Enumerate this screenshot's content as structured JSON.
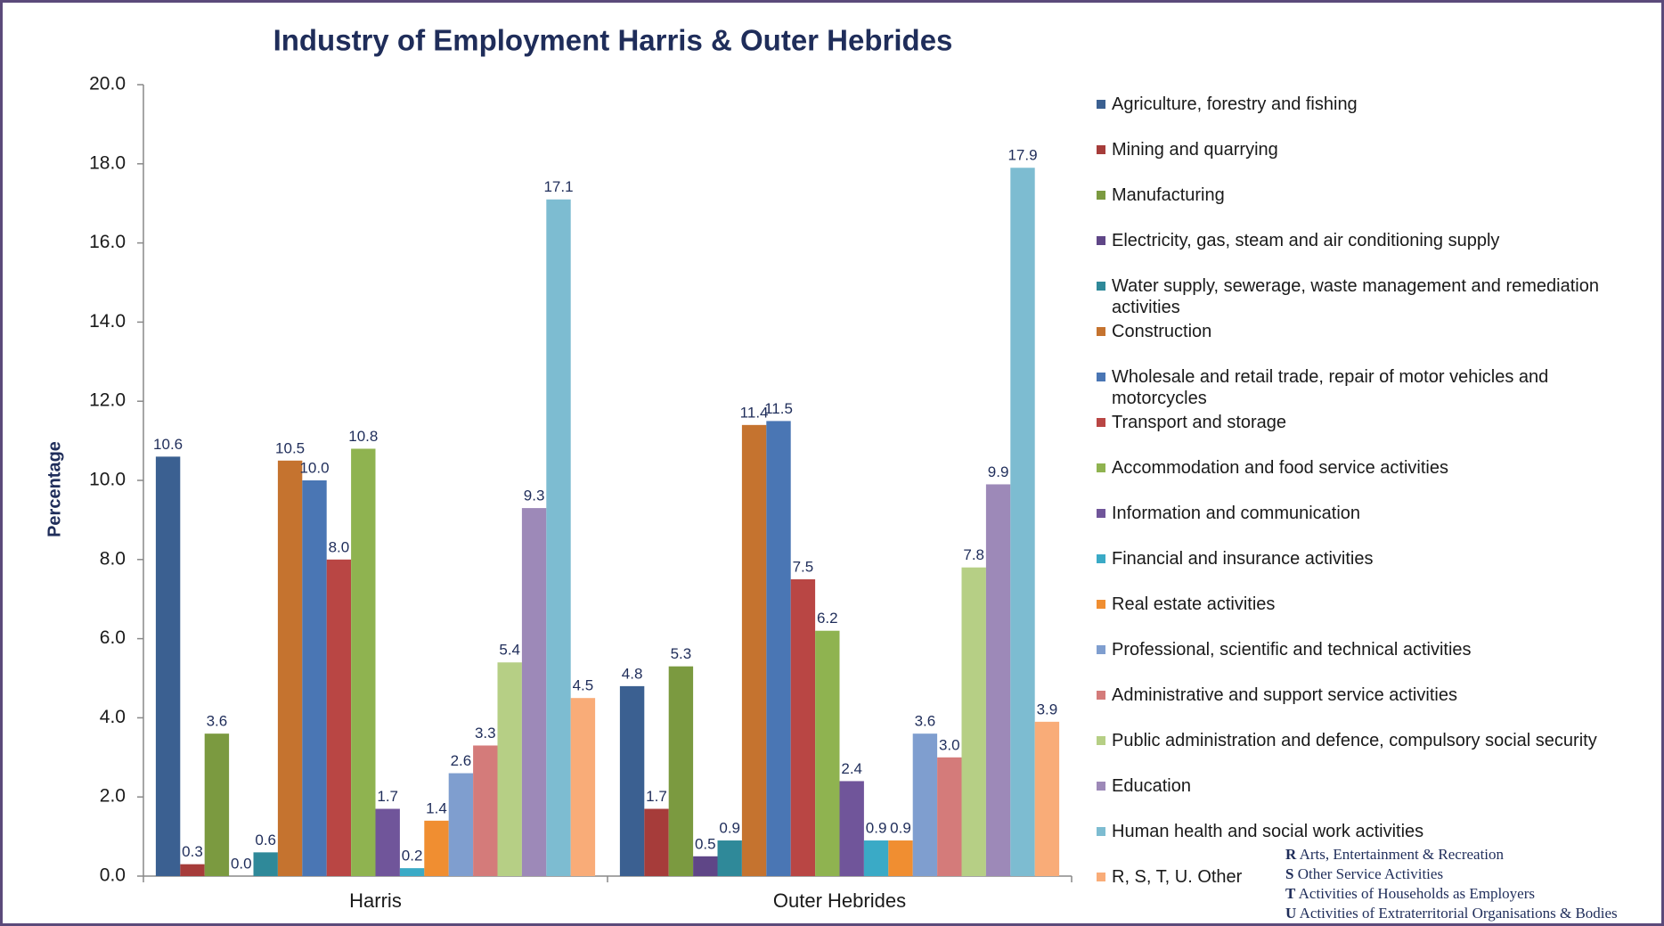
{
  "chart_data": {
    "type": "bar",
    "title": "Industry of Employment Harris & Outer Hebrides",
    "y_label": "Percentage",
    "categories": [
      "Harris",
      "Outer Hebrides"
    ],
    "ylim": [
      0,
      20
    ],
    "yticks": [
      {
        "value": 0,
        "label": "0.0"
      },
      {
        "value": 2,
        "label": "2.0"
      },
      {
        "value": 4,
        "label": "4.0"
      },
      {
        "value": 6,
        "label": "6.0"
      },
      {
        "value": 8,
        "label": "8.0"
      },
      {
        "value": 10,
        "label": "10.0"
      },
      {
        "value": 12,
        "label": "12.0"
      },
      {
        "value": 14,
        "label": "14.0"
      },
      {
        "value": 16,
        "label": "16.0"
      },
      {
        "value": 18,
        "label": "18.0"
      },
      {
        "value": 20,
        "label": "20.0"
      }
    ],
    "legend_position": "right",
    "series": [
      {
        "name": "Agriculture, forestry and fishing",
        "color": "#3b6091",
        "values": [
          10.6,
          4.8
        ],
        "value_labels": [
          "10.6",
          "4.8"
        ]
      },
      {
        "name": "Mining and quarrying",
        "color": "#a63c3a",
        "values": [
          0.3,
          1.7
        ],
        "value_labels": [
          "0.3",
          "1.7"
        ]
      },
      {
        "name": "Manufacturing",
        "color": "#7b9a40",
        "values": [
          3.6,
          5.3
        ],
        "value_labels": [
          "3.6",
          "5.3"
        ]
      },
      {
        "name": "Electricity, gas, steam and air conditioning supply",
        "color": "#5f4687",
        "values": [
          0.0,
          0.5
        ],
        "value_labels": [
          "0.0",
          "0.5"
        ]
      },
      {
        "name": "Water supply, sewerage, waste management and remediation activities",
        "color": "#2f8999",
        "values": [
          0.6,
          0.9
        ],
        "value_labels": [
          "0.6",
          "0.9"
        ]
      },
      {
        "name": "Construction",
        "color": "#c5732f",
        "values": [
          10.5,
          11.4
        ],
        "value_labels": [
          "10.5",
          "11.4"
        ]
      },
      {
        "name": "Wholesale and retail trade, repair of motor vehicles and motorcycles",
        "color": "#4a76b4",
        "values": [
          10.0,
          11.5
        ],
        "value_labels": [
          "10.0",
          "11.5"
        ]
      },
      {
        "name": "Transport and storage",
        "color": "#b94644",
        "values": [
          8.0,
          7.5
        ],
        "value_labels": [
          "8.0",
          "7.5"
        ]
      },
      {
        "name": "Accommodation and food service activities",
        "color": "#8fb350",
        "values": [
          10.8,
          6.2
        ],
        "value_labels": [
          "10.8",
          "6.2"
        ]
      },
      {
        "name": "Information and communication",
        "color": "#70559a",
        "values": [
          1.7,
          2.4
        ],
        "value_labels": [
          "1.7",
          "2.4"
        ]
      },
      {
        "name": "Financial and insurance activities",
        "color": "#3aaac6",
        "values": [
          0.2,
          0.9
        ],
        "value_labels": [
          "0.2",
          "0.9"
        ]
      },
      {
        "name": "Real estate activities",
        "color": "#f08e31",
        "values": [
          1.4,
          0.9
        ],
        "value_labels": [
          "1.4",
          "0.9"
        ]
      },
      {
        "name": "Professional, scientific and technical activities",
        "color": "#7f9ecf",
        "values": [
          2.6,
          3.6
        ],
        "value_labels": [
          "2.6",
          "3.6"
        ]
      },
      {
        "name": "Administrative and support service activities",
        "color": "#d47b7a",
        "values": [
          3.3,
          3.0
        ],
        "value_labels": [
          "3.3",
          "3.0"
        ]
      },
      {
        "name": "Public administration and defence, compulsory social security",
        "color": "#b6cf85",
        "values": [
          5.4,
          7.8
        ],
        "value_labels": [
          "5.4",
          "7.8"
        ]
      },
      {
        "name": "Education",
        "color": "#9d89b8",
        "values": [
          9.3,
          9.9
        ],
        "value_labels": [
          "9.3",
          "9.9"
        ]
      },
      {
        "name": "Human health and social work activities",
        "color": "#7dbcd1",
        "values": [
          17.1,
          17.9
        ],
        "value_labels": [
          "17.1",
          "17.9"
        ]
      },
      {
        "name": "R, S, T, U. Other",
        "color": "#f9ac78",
        "values": [
          4.5,
          3.9
        ],
        "value_labels": [
          "4.5",
          "3.9"
        ]
      }
    ],
    "notes": [
      {
        "letter": "R",
        "text": "Arts, Entertainment & Recreation"
      },
      {
        "letter": "S",
        "text": "Other Service Activities"
      },
      {
        "letter": "T",
        "text": "Activities of Households as Employers"
      },
      {
        "letter": "U",
        "text": "Activities of Extraterritorial Organisations & Bodies"
      }
    ]
  }
}
